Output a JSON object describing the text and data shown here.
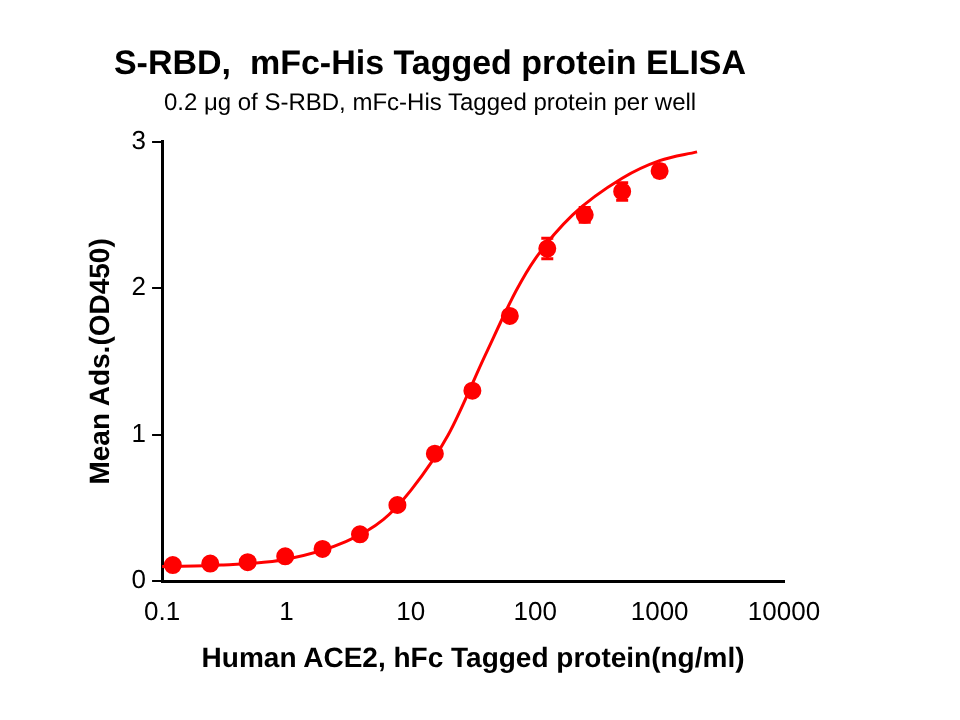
{
  "chart_data": {
    "type": "scatter",
    "title": "S-RBD,  mFc-His Tagged protein ELISA",
    "subtitle": "0.2 μg of S-RBD, mFc-His Tagged protein per well",
    "xlabel": "Human ACE2, hFc Tagged protein(ng/ml)",
    "ylabel": "Mean Ads.(OD450)",
    "log": "x",
    "xlim": [
      0.1,
      10000
    ],
    "xticks": [
      0.1,
      1,
      10,
      100,
      1000,
      10000
    ],
    "ylim": [
      0,
      3
    ],
    "yticks": [
      0,
      1,
      2,
      3
    ],
    "grid": false,
    "legend": false,
    "marker": "circle",
    "series": [
      {
        "type": "scatter",
        "color": "#ff0000",
        "x": [
          0.122,
          0.244,
          0.488,
          0.977,
          1.95,
          3.9,
          7.8,
          15.6,
          31.25,
          62.5,
          125,
          250,
          500,
          1000
        ],
        "values": [
          0.11,
          0.12,
          0.13,
          0.17,
          0.22,
          0.32,
          0.52,
          0.87,
          1.3,
          1.81,
          2.27,
          2.5,
          2.66,
          2.8
        ],
        "errors": [
          null,
          null,
          null,
          null,
          null,
          null,
          null,
          null,
          null,
          null,
          0.07,
          0.05,
          0.06,
          0.04
        ]
      },
      {
        "type": "line",
        "color": "#ff0000",
        "marker": "none",
        "x": [
          0.1,
          0.3,
          1,
          3,
          6,
          10,
          20,
          40,
          70,
          100,
          200,
          500,
          1000,
          2000
        ],
        "values": [
          0.1,
          0.11,
          0.15,
          0.27,
          0.42,
          0.62,
          1.0,
          1.55,
          1.98,
          2.2,
          2.5,
          2.75,
          2.87,
          2.93
        ]
      }
    ]
  }
}
